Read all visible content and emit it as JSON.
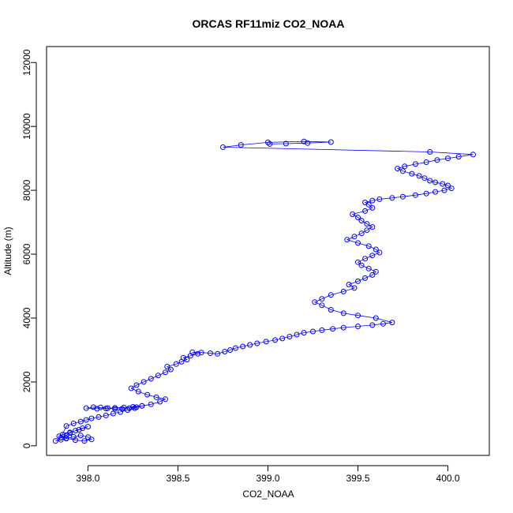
{
  "chart_data": {
    "type": "scatter",
    "title": "ORCAS RF11miz CO2_NOAA",
    "xlabel": "CO2_NOAA",
    "ylabel": "Altitude (m)",
    "xlim": [
      397.77,
      400.23
    ],
    "ylim": [
      -300,
      12500
    ],
    "xticks": [
      398.0,
      398.5,
      399.0,
      399.5,
      400.0
    ],
    "xtick_labels": [
      "398.0",
      "398.5",
      "399.0",
      "399.5",
      "400.0"
    ],
    "yticks": [
      0,
      2000,
      4000,
      6000,
      8000,
      10000,
      12000
    ],
    "ytick_labels": [
      "0",
      "2000",
      "4000",
      "6000",
      "8000",
      "10000",
      "12000"
    ],
    "grid": false,
    "marker": "open-circle",
    "connected": true,
    "color": "#0000ff",
    "series": [
      {
        "x": [
          397.82,
          397.85,
          397.88,
          397.92,
          397.96,
          398.0,
          398.02,
          397.98,
          397.93,
          397.88,
          397.84,
          397.86,
          397.9,
          397.95,
          398.0,
          397.97,
          397.93,
          397.9,
          397.88,
          397.85,
          397.88,
          397.92,
          397.96,
          397.99,
          398.02,
          398.06,
          398.1,
          398.14,
          398.18,
          398.22,
          398.26,
          398.3,
          398.27,
          398.23,
          398.19,
          398.15,
          398.11,
          398.07,
          398.03,
          397.99,
          398.05,
          398.1,
          398.15,
          398.2,
          398.25,
          398.3,
          398.35,
          398.4,
          398.43,
          398.38,
          398.33,
          398.28,
          398.24,
          398.27,
          398.31,
          398.35,
          398.39,
          398.43,
          398.46,
          398.44,
          398.49,
          398.52,
          398.55,
          398.53,
          398.57,
          398.61,
          398.58,
          398.63,
          398.68,
          398.72,
          398.76,
          398.79,
          398.82,
          398.86,
          398.9,
          398.94,
          398.99,
          399.04,
          399.08,
          399.12,
          399.16,
          399.2,
          399.25,
          399.3,
          399.36,
          399.42,
          399.5,
          399.58,
          399.64,
          399.69,
          399.6,
          399.5,
          399.42,
          399.35,
          399.3,
          399.26,
          399.3,
          399.35,
          399.42,
          399.48,
          399.45,
          399.5,
          399.54,
          399.58,
          399.6,
          399.56,
          399.52,
          399.5,
          399.54,
          399.58,
          399.62,
          399.6,
          399.56,
          399.5,
          399.44,
          399.48,
          399.52,
          399.55,
          399.58,
          399.55,
          399.52,
          399.5,
          399.47,
          399.54,
          399.58,
          399.56,
          399.54,
          399.58,
          399.62,
          399.69,
          399.75,
          399.82,
          399.88,
          399.93,
          399.98,
          400.02,
          400.0,
          399.97,
          399.93,
          399.9,
          399.87,
          399.84,
          399.8,
          399.75,
          399.72,
          399.76,
          399.82,
          399.88,
          399.94,
          400.0,
          400.06,
          400.14,
          399.9,
          398.75,
          398.85,
          399.0,
          399.2,
          399.35,
          399.22,
          399.1,
          399.01
        ],
        "y": [
          150,
          190,
          230,
          280,
          320,
          270,
          200,
          150,
          180,
          240,
          300,
          350,
          420,
          500,
          600,
          550,
          470,
          400,
          330,
          250,
          620,
          700,
          760,
          810,
          860,
          900,
          950,
          1010,
          1060,
          1120,
          1180,
          1250,
          1210,
          1180,
          1160,
          1150,
          1180,
          1200,
          1210,
          1180,
          1160,
          1170,
          1190,
          1200,
          1220,
          1250,
          1300,
          1380,
          1460,
          1520,
          1600,
          1700,
          1800,
          1900,
          2000,
          2100,
          2200,
          2300,
          2390,
          2480,
          2560,
          2630,
          2700,
          2760,
          2820,
          2880,
          2930,
          2920,
          2900,
          2880,
          2950,
          3000,
          3060,
          3110,
          3160,
          3210,
          3260,
          3310,
          3360,
          3420,
          3480,
          3540,
          3580,
          3620,
          3660,
          3700,
          3740,
          3780,
          3820,
          3860,
          4000,
          4080,
          4150,
          4260,
          4400,
          4500,
          4600,
          4720,
          4830,
          4940,
          5050,
          5150,
          5250,
          5350,
          5450,
          5550,
          5650,
          5750,
          5860,
          5960,
          6050,
          6150,
          6250,
          6350,
          6450,
          6550,
          6650,
          6750,
          6850,
          6950,
          7050,
          7150,
          7250,
          7350,
          7450,
          7550,
          7620,
          7680,
          7720,
          7760,
          7800,
          7850,
          7900,
          7950,
          8000,
          8060,
          8150,
          8200,
          8250,
          8300,
          8380,
          8450,
          8520,
          8600,
          8680,
          8750,
          8820,
          8880,
          8950,
          9000,
          9050,
          9120,
          9200,
          9350,
          9420,
          9500,
          9530,
          9510,
          9480,
          9460,
          9450
        ]
      }
    ]
  }
}
